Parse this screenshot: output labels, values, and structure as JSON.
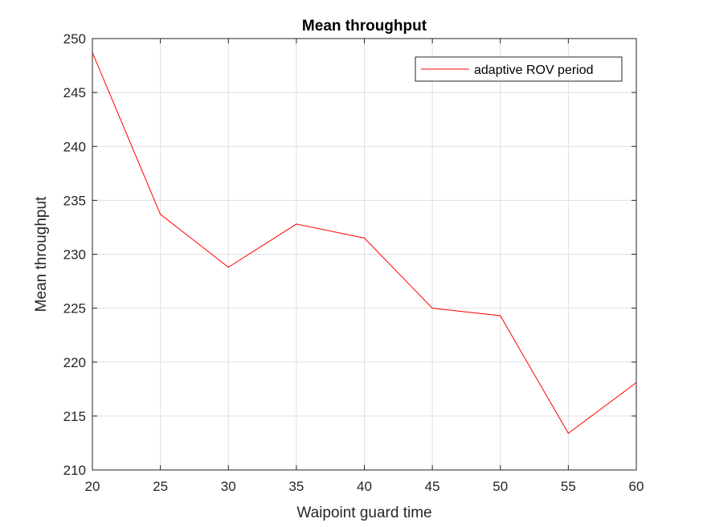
{
  "chart_data": {
    "type": "line",
    "title": "Mean throughput",
    "xlabel": "Waipoint guard time",
    "ylabel": "Mean throughput",
    "xlim": [
      20,
      60
    ],
    "ylim": [
      210,
      250
    ],
    "xticks": [
      20,
      25,
      30,
      35,
      40,
      45,
      50,
      55,
      60
    ],
    "yticks": [
      210,
      215,
      220,
      225,
      230,
      235,
      240,
      245,
      250
    ],
    "grid": true,
    "legend_position": "top-right",
    "series": [
      {
        "name": "adaptive ROV period",
        "color": "#ff0000",
        "x": [
          20,
          25,
          30,
          35,
          40,
          45,
          50,
          55,
          60
        ],
        "y": [
          248.7,
          233.7,
          228.8,
          232.8,
          231.5,
          225.0,
          224.3,
          213.4,
          218.1
        ]
      }
    ]
  }
}
